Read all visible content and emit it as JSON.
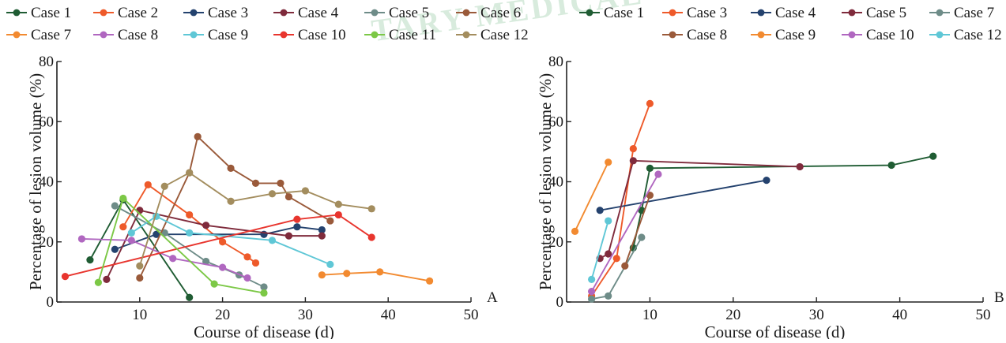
{
  "chart_data": [
    {
      "type": "line",
      "panel_label": "A",
      "xlabel": "Course of disease (d)",
      "ylabel": "Percentage of lesion volume (%)",
      "xlim": [
        0,
        50
      ],
      "ylim": [
        0,
        80
      ],
      "xticks": [
        10,
        20,
        30,
        40,
        50
      ],
      "yticks": [
        0,
        20,
        40,
        60,
        80
      ],
      "grid": false,
      "legend_position": "top",
      "series": [
        {
          "name": "Case 1",
          "color": "#1f5c33",
          "x": [
            4,
            8,
            16
          ],
          "y": [
            14,
            34,
            1.5
          ]
        },
        {
          "name": "Case 2",
          "color": "#ee5a2a",
          "x": [
            8,
            11,
            16,
            20,
            23,
            24
          ],
          "y": [
            25,
            39,
            29,
            20,
            15,
            13
          ]
        },
        {
          "name": "Case 3",
          "color": "#24426e",
          "x": [
            7,
            12,
            25,
            29,
            32
          ],
          "y": [
            17.5,
            22.5,
            22.5,
            25,
            24
          ]
        },
        {
          "name": "Case 4",
          "color": "#7f2b3c",
          "x": [
            6,
            10,
            18,
            28,
            32
          ],
          "y": [
            7.5,
            30.5,
            25.5,
            22,
            22
          ]
        },
        {
          "name": "Case 5",
          "color": "#6e8c88",
          "x": [
            7,
            13,
            18,
            22,
            25
          ],
          "y": [
            32,
            23,
            13.5,
            9,
            5
          ]
        },
        {
          "name": "Case 6",
          "color": "#9a5a3a",
          "x": [
            10,
            16,
            17,
            21,
            24,
            27,
            28,
            33
          ],
          "y": [
            8,
            43,
            55,
            44.5,
            39.5,
            39.5,
            35,
            27
          ]
        },
        {
          "name": "Case 7",
          "color": "#f28a30",
          "x": [
            32,
            35,
            39,
            45
          ],
          "y": [
            9,
            9.5,
            10,
            7
          ]
        },
        {
          "name": "Case 8",
          "color": "#b067c0",
          "x": [
            3,
            9,
            14,
            20,
            23
          ],
          "y": [
            21,
            20.5,
            14.5,
            11.5,
            8
          ]
        },
        {
          "name": "Case 9",
          "color": "#5fc7d6",
          "x": [
            9,
            12,
            16,
            26,
            33
          ],
          "y": [
            23,
            28.5,
            23,
            20.5,
            12.5
          ]
        },
        {
          "name": "Case 10",
          "color": "#e8352e",
          "x": [
            1,
            29,
            34,
            38
          ],
          "y": [
            8.5,
            27.5,
            29,
            21.5
          ]
        },
        {
          "name": "Case 11",
          "color": "#7cc846",
          "x": [
            5,
            8,
            19,
            25
          ],
          "y": [
            6.5,
            34.5,
            6,
            3
          ]
        },
        {
          "name": "Case 12",
          "color": "#a38d5e",
          "x": [
            10,
            13,
            16,
            21,
            26,
            30,
            34,
            38
          ],
          "y": [
            12,
            38.5,
            43,
            33.5,
            36,
            37,
            32.5,
            31
          ]
        }
      ]
    },
    {
      "type": "line",
      "panel_label": "B",
      "xlabel": "Course of disease (d)",
      "ylabel": "Percentage of lesion volume (%)",
      "xlim": [
        0,
        50
      ],
      "ylim": [
        0,
        80
      ],
      "xticks": [
        10,
        20,
        30,
        40,
        50
      ],
      "yticks": [
        0,
        20,
        40,
        60,
        80
      ],
      "grid": false,
      "legend_position": "top",
      "series": [
        {
          "name": "Case 1",
          "color": "#1f5c33",
          "x": [
            8,
            9,
            10,
            39,
            44
          ],
          "y": [
            18,
            30.5,
            44.5,
            45.5,
            48.5
          ]
        },
        {
          "name": "Case 3",
          "color": "#ee5a2a",
          "x": [
            3,
            6,
            8,
            10
          ],
          "y": [
            2,
            14.5,
            51,
            66
          ]
        },
        {
          "name": "Case 4",
          "color": "#24426e",
          "x": [
            4,
            24
          ],
          "y": [
            30.5,
            40.5
          ]
        },
        {
          "name": "Case 5",
          "color": "#7f2b3c",
          "x": [
            4,
            5,
            8,
            28
          ],
          "y": [
            14.5,
            16,
            47,
            45
          ]
        },
        {
          "name": "Case 7",
          "color": "#6e8c88",
          "x": [
            3,
            5,
            9
          ],
          "y": [
            1,
            2,
            21.5
          ]
        },
        {
          "name": "Case 8",
          "color": "#9a5a3a",
          "x": [
            7,
            10
          ],
          "y": [
            12,
            35.5
          ]
        },
        {
          "name": "Case 9",
          "color": "#f28a30",
          "x": [
            1,
            5
          ],
          "y": [
            23.5,
            46.5
          ]
        },
        {
          "name": "Case 10",
          "color": "#b067c0",
          "x": [
            3,
            11
          ],
          "y": [
            3.5,
            42.5
          ]
        },
        {
          "name": "Case 12",
          "color": "#5fc7d6",
          "x": [
            3,
            5
          ],
          "y": [
            7.5,
            27
          ]
        }
      ]
    }
  ]
}
